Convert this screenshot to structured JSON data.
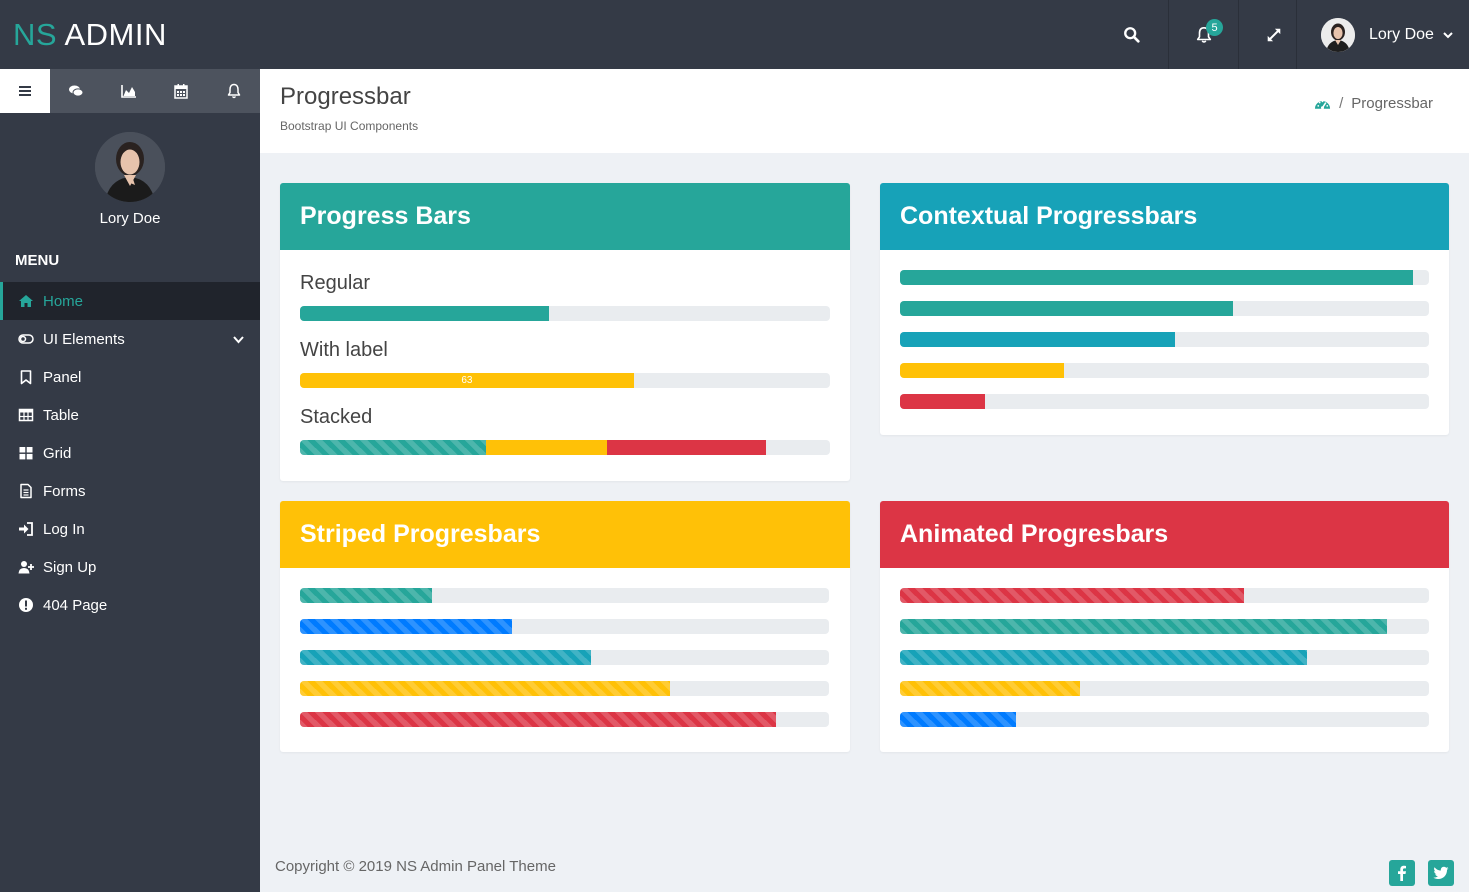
{
  "brand": {
    "ns": "NS",
    "admin": "ADMIN"
  },
  "topbar": {
    "search_icon": "search-icon",
    "notifications_icon": "bell-icon",
    "notifications_count": "5",
    "expand_icon": "expand-icon",
    "user_name": "Lory Doe",
    "user_caret_icon": "chevron-down-icon"
  },
  "sidebar": {
    "tabs": [
      "menu-icon",
      "comments-icon",
      "chart-icon",
      "calendar-icon",
      "bell-icon"
    ],
    "profile_name": "Lory Doe",
    "menu_title": "MENU",
    "items": [
      {
        "label": "Home",
        "icon": "home-icon",
        "active": true
      },
      {
        "label": "UI Elements",
        "icon": "toggle-icon",
        "has_submenu": true
      },
      {
        "label": "Panel",
        "icon": "bookmark-icon"
      },
      {
        "label": "Table",
        "icon": "table-icon"
      },
      {
        "label": "Grid",
        "icon": "grid-icon"
      },
      {
        "label": "Forms",
        "icon": "file-icon"
      },
      {
        "label": "Log In",
        "icon": "sign-in-icon"
      },
      {
        "label": "Sign Up",
        "icon": "user-plus-icon"
      },
      {
        "label": "404 Page",
        "icon": "exclamation-icon"
      }
    ]
  },
  "page": {
    "title": "Progressbar",
    "subtitle": "Bootstrap UI Components",
    "breadcrumb_icon": "dashboard-icon",
    "breadcrumb_sep": "/",
    "breadcrumb_current": "Progressbar"
  },
  "colors": {
    "teal": "#26a69a",
    "cyan": "#17a2b8",
    "yellow": "#ffc107",
    "red": "#dc3545",
    "blue": "#007bff",
    "sidebar": "#343a46"
  },
  "panels": {
    "progress_bars": {
      "title": "Progress Bars",
      "regular_label": "Regular",
      "regular_value": 47,
      "with_label_label": "With label",
      "with_label_value": 63,
      "with_label_text": "63",
      "stacked_label": "Stacked",
      "stacked_values": [
        35,
        23,
        30
      ]
    },
    "contextual": {
      "title": "Contextual Progressbars",
      "values": [
        97,
        63,
        52,
        31,
        16
      ]
    },
    "striped": {
      "title": "Striped Progresbars",
      "values": [
        25,
        40,
        55,
        70,
        90
      ]
    },
    "animated": {
      "title": "Animated Progresbars",
      "values": [
        65,
        92,
        77,
        34,
        22
      ]
    }
  },
  "footer": {
    "copyright": "Copyright © 2019 NS Admin Panel Theme",
    "facebook_icon": "facebook-icon",
    "twitter_icon": "twitter-icon"
  }
}
